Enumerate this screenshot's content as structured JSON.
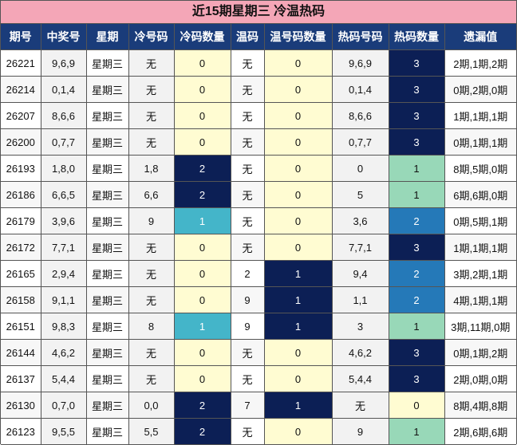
{
  "title": "近15期星期三 冷温热码",
  "headers": [
    "期号",
    "中奖号",
    "星期",
    "冷号码",
    "冷码数量",
    "温码",
    "温号码数量",
    "热码号码",
    "热码数量",
    "遗漏值"
  ],
  "rows": [
    {
      "period": "26221",
      "win": "9,6,9",
      "week": "星期三",
      "cold": "无",
      "cold_cnt": "0",
      "warm": "无",
      "warm_cnt": "0",
      "hot": "9,6,9",
      "hot_cnt": "3",
      "miss": "2期,1期,2期"
    },
    {
      "period": "26214",
      "win": "0,1,4",
      "week": "星期三",
      "cold": "无",
      "cold_cnt": "0",
      "warm": "无",
      "warm_cnt": "0",
      "hot": "0,1,4",
      "hot_cnt": "3",
      "miss": "0期,2期,0期"
    },
    {
      "period": "26207",
      "win": "8,6,6",
      "week": "星期三",
      "cold": "无",
      "cold_cnt": "0",
      "warm": "无",
      "warm_cnt": "0",
      "hot": "8,6,6",
      "hot_cnt": "3",
      "miss": "1期,1期,1期"
    },
    {
      "period": "26200",
      "win": "0,7,7",
      "week": "星期三",
      "cold": "无",
      "cold_cnt": "0",
      "warm": "无",
      "warm_cnt": "0",
      "hot": "0,7,7",
      "hot_cnt": "3",
      "miss": "0期,1期,1期"
    },
    {
      "period": "26193",
      "win": "1,8,0",
      "week": "星期三",
      "cold": "1,8",
      "cold_cnt": "2",
      "warm": "无",
      "warm_cnt": "0",
      "hot": "0",
      "hot_cnt": "1",
      "miss": "8期,5期,0期"
    },
    {
      "period": "26186",
      "win": "6,6,5",
      "week": "星期三",
      "cold": "6,6",
      "cold_cnt": "2",
      "warm": "无",
      "warm_cnt": "0",
      "hot": "5",
      "hot_cnt": "1",
      "miss": "6期,6期,0期"
    },
    {
      "period": "26179",
      "win": "3,9,6",
      "week": "星期三",
      "cold": "9",
      "cold_cnt": "1",
      "warm": "无",
      "warm_cnt": "0",
      "hot": "3,6",
      "hot_cnt": "2",
      "miss": "0期,5期,1期"
    },
    {
      "period": "26172",
      "win": "7,7,1",
      "week": "星期三",
      "cold": "无",
      "cold_cnt": "0",
      "warm": "无",
      "warm_cnt": "0",
      "hot": "7,7,1",
      "hot_cnt": "3",
      "miss": "1期,1期,1期"
    },
    {
      "period": "26165",
      "win": "2,9,4",
      "week": "星期三",
      "cold": "无",
      "cold_cnt": "0",
      "warm": "2",
      "warm_cnt": "1",
      "hot": "9,4",
      "hot_cnt": "2",
      "miss": "3期,2期,1期"
    },
    {
      "period": "26158",
      "win": "9,1,1",
      "week": "星期三",
      "cold": "无",
      "cold_cnt": "0",
      "warm": "9",
      "warm_cnt": "1",
      "hot": "1,1",
      "hot_cnt": "2",
      "miss": "4期,1期,1期"
    },
    {
      "period": "26151",
      "win": "9,8,3",
      "week": "星期三",
      "cold": "8",
      "cold_cnt": "1",
      "warm": "9",
      "warm_cnt": "1",
      "hot": "3",
      "hot_cnt": "1",
      "miss": "3期,11期,0期"
    },
    {
      "period": "26144",
      "win": "4,6,2",
      "week": "星期三",
      "cold": "无",
      "cold_cnt": "0",
      "warm": "无",
      "warm_cnt": "0",
      "hot": "4,6,2",
      "hot_cnt": "3",
      "miss": "0期,1期,2期"
    },
    {
      "period": "26137",
      "win": "5,4,4",
      "week": "星期三",
      "cold": "无",
      "cold_cnt": "0",
      "warm": "无",
      "warm_cnt": "0",
      "hot": "5,4,4",
      "hot_cnt": "3",
      "miss": "2期,0期,0期"
    },
    {
      "period": "26130",
      "win": "0,7,0",
      "week": "星期三",
      "cold": "0,0",
      "cold_cnt": "2",
      "warm": "7",
      "warm_cnt": "1",
      "hot": "无",
      "hot_cnt": "0",
      "miss": "8期,4期,8期"
    },
    {
      "period": "26123",
      "win": "9,5,5",
      "week": "星期三",
      "cold": "5,5",
      "cold_cnt": "2",
      "warm": "无",
      "warm_cnt": "0",
      "hot": "9",
      "hot_cnt": "1",
      "miss": "2期,6期,6期"
    }
  ],
  "colors": {
    "title_bg": "#f4a6b7",
    "header_bg": "#1a3c7a",
    "count_0": "#fffcd2",
    "count_1_cold": "#44b5c9",
    "count_2_cold": "#0c1f55",
    "count_1_warm": "#0c1f55",
    "count_1_hot": "#98d8b8",
    "count_2_hot": "#2579b8",
    "count_3_hot": "#0c1f55"
  }
}
